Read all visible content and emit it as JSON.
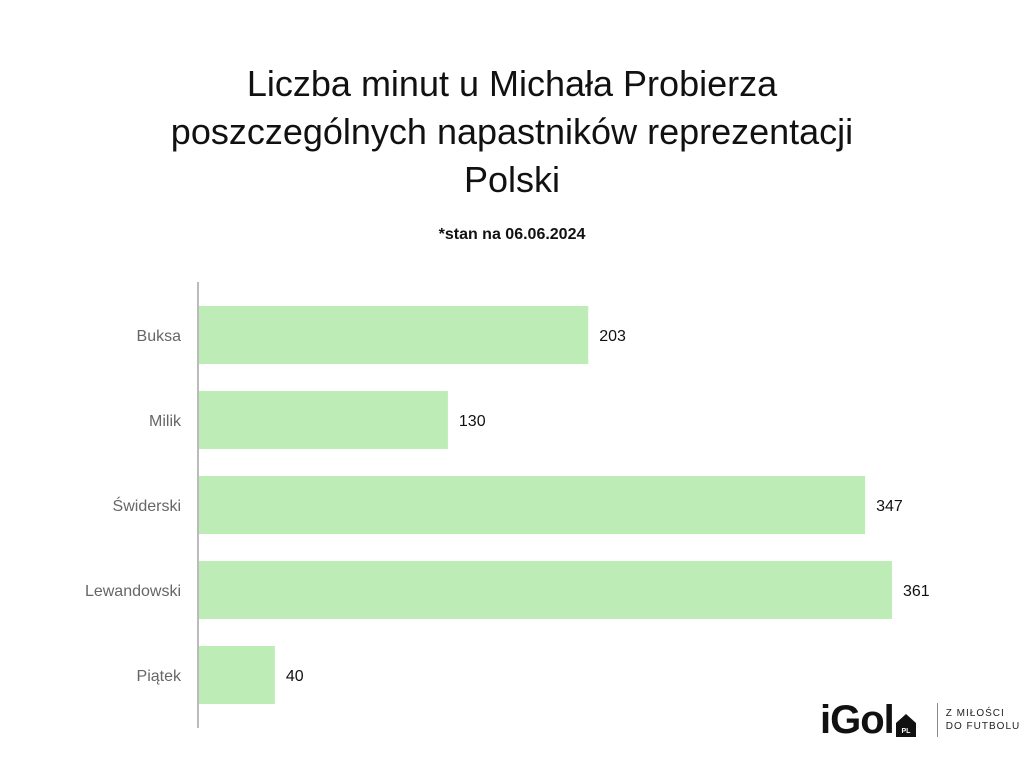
{
  "title_lines": [
    "Liczba minut u Michała Probierza",
    "poszczególnych napastników reprezentacji",
    "Polski"
  ],
  "subtitle": "*stan na 06.06.2024",
  "colors": {
    "bar": "#bdecb6",
    "axis": "#bbbbbb"
  },
  "logo": {
    "word": "iGol",
    "badge": "PL",
    "tagline_lines": [
      "Z MIŁOŚCI",
      "DO FUTBOLU"
    ]
  },
  "chart_data": {
    "type": "bar",
    "orientation": "horizontal",
    "title": "Liczba minut u Michała Probierza poszczególnych napastników reprezentacji Polski",
    "subtitle": "*stan na 06.06.2024",
    "categories": [
      "Buksa",
      "Milik",
      "Świderski",
      "Lewandowski",
      "Piątek"
    ],
    "values": [
      203,
      130,
      347,
      361,
      40
    ],
    "xlabel": "",
    "ylabel": "",
    "xlim": [
      0,
      361
    ],
    "grid": false,
    "data_labels": true
  }
}
